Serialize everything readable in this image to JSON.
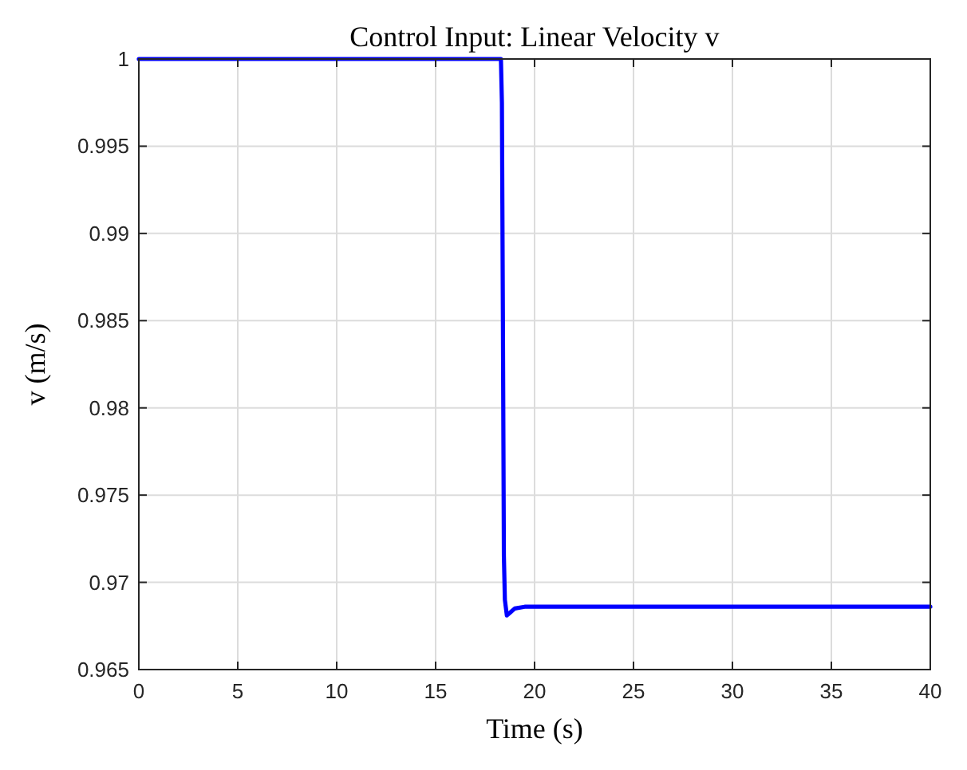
{
  "chart_data": {
    "type": "line",
    "title": "Control Input: Linear Velocity v",
    "xlabel": "Time (s)",
    "ylabel": "v (m/s)",
    "x": [
      0,
      18.3,
      18.35,
      18.4,
      18.45,
      18.5,
      18.6,
      18.8,
      19.0,
      19.5,
      20,
      40
    ],
    "series": [
      {
        "color": "#0000ff",
        "values": [
          1,
          1,
          0.9975,
          0.985,
          0.9715,
          0.969,
          0.9681,
          0.9683,
          0.9685,
          0.9686,
          0.9686,
          0.9686
        ]
      }
    ],
    "xlim": [
      0,
      40
    ],
    "xticks": [
      0,
      5,
      10,
      15,
      20,
      25,
      30,
      35,
      40
    ],
    "ylim": [
      0.965,
      1
    ],
    "yticks": [
      0.965,
      0.97,
      0.975,
      0.98,
      0.985,
      0.99,
      0.995,
      1
    ],
    "grid": true,
    "marker": "none",
    "line_style": "solid"
  }
}
